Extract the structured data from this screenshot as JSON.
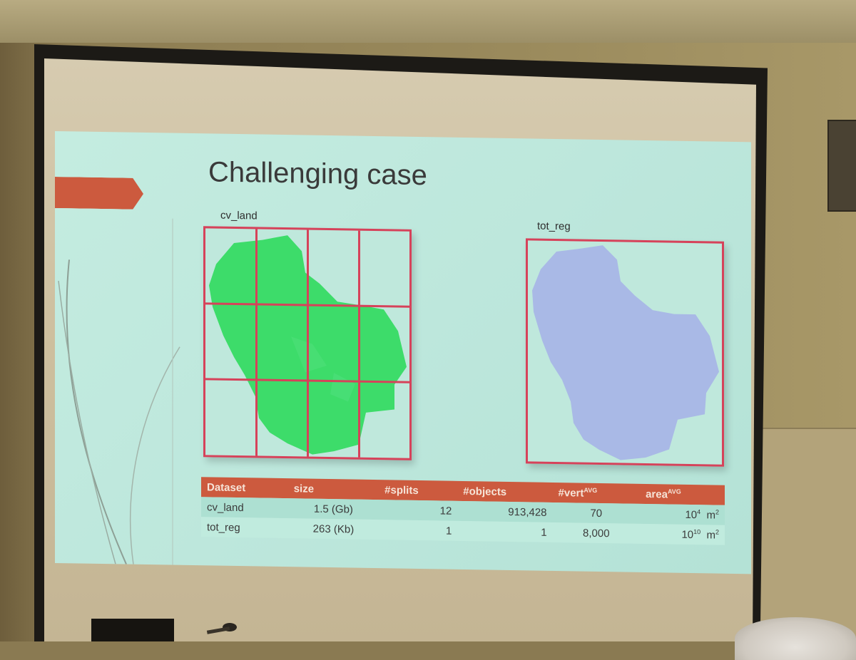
{
  "slide": {
    "title": "Challenging case",
    "left_panel_label": "cv_land",
    "right_panel_label": "tot_reg"
  },
  "table": {
    "headers": {
      "dataset": "Dataset",
      "size": "size",
      "splits": "#splits",
      "objects": "#objects",
      "vert": "#vert",
      "vert_sup": "AVG",
      "area": "area",
      "area_sup": "AVG"
    },
    "rows": [
      {
        "dataset": "cv_land",
        "size": "1.5 (Gb)",
        "splits": "12",
        "objects": "913,428",
        "vert": "70",
        "area_base": "10",
        "area_exp": "4",
        "area_unit": "m",
        "area_unit_exp": "2"
      },
      {
        "dataset": "tot_reg",
        "size": "263 (Kb)",
        "splits": "1",
        "objects": "1",
        "vert": "8,000",
        "area_base": "10",
        "area_exp": "10",
        "area_unit": "m",
        "area_unit_exp": "2"
      }
    ]
  },
  "colors": {
    "slide_background": "#c0eadd",
    "accent": "#cc5a3e",
    "grid_border": "#d6425a",
    "land_fill": "#3ddc6a",
    "region_fill": "#a9b9e6"
  }
}
